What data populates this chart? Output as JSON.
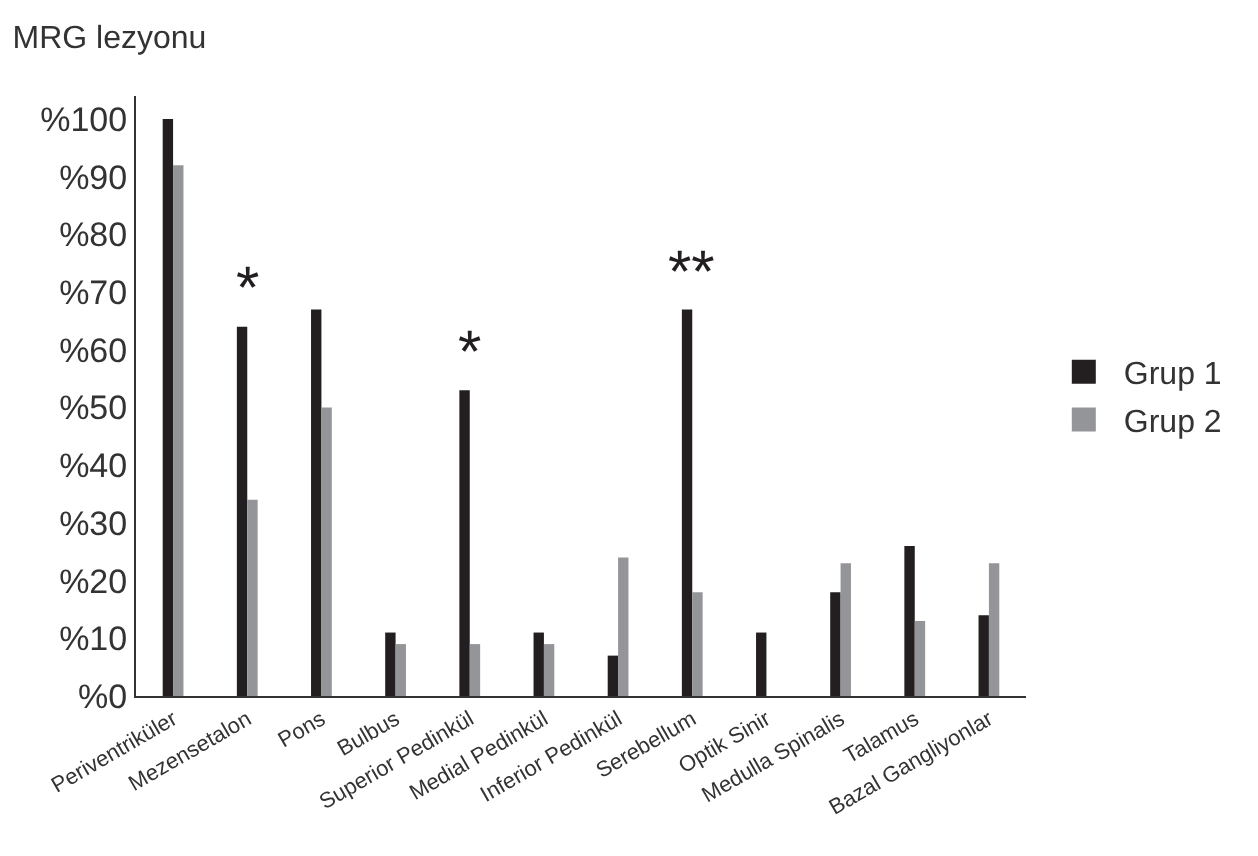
{
  "chart_data": {
    "type": "bar",
    "title": "MRG lezyonu",
    "categories": [
      "Periventriküler",
      "Mezensetalon",
      "Pons",
      "Bulbus",
      "Superior Pedinkül",
      "Medial Pedinkül",
      "Inferior Pedinkül",
      "Serebellum",
      "Optik Sinir",
      "Medulla Spinalis",
      "Talamus",
      "Bazal Gangliyonlar"
    ],
    "series": [
      {
        "name": "Grup 1",
        "color": "#231f20",
        "values": [
          100,
          64,
          67,
          11,
          53,
          11,
          7,
          67,
          11,
          18,
          26,
          14
        ]
      },
      {
        "name": "Grup 2",
        "color": "#939598",
        "values": [
          92,
          34,
          50,
          9,
          9,
          9,
          24,
          18,
          null,
          23,
          13,
          23
        ]
      }
    ],
    "ylim": [
      0,
      104
    ],
    "yticks": [
      {
        "value": 0,
        "label": "%0"
      },
      {
        "value": 10,
        "label": "%10"
      },
      {
        "value": 20,
        "label": "%20"
      },
      {
        "value": 30,
        "label": "%30"
      },
      {
        "value": 40,
        "label": "%40"
      },
      {
        "value": 50,
        "label": "%50"
      },
      {
        "value": 60,
        "label": "%60"
      },
      {
        "value": 70,
        "label": "%70"
      },
      {
        "value": 80,
        "label": "%80"
      },
      {
        "value": 90,
        "label": "%90"
      },
      {
        "value": 100,
        "label": "%100"
      }
    ],
    "annotations": [
      {
        "text": "*",
        "x": "Mezensetalon",
        "y": 64
      },
      {
        "text": "*",
        "x": "Superior Pedinkül",
        "y": 53
      },
      {
        "text": "**",
        "x": "Serebellum",
        "y": 67
      }
    ],
    "grid": false,
    "legend": "right"
  }
}
